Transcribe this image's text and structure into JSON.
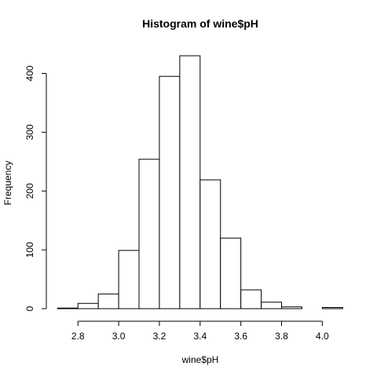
{
  "chart_data": {
    "type": "bar",
    "title": "Histogram of wine$pH",
    "xlabel": "wine$pH",
    "ylabel": "Frequency",
    "bins": [
      {
        "start": 2.7,
        "end": 2.8,
        "count": 1
      },
      {
        "start": 2.8,
        "end": 2.9,
        "count": 9
      },
      {
        "start": 2.9,
        "end": 3.0,
        "count": 25
      },
      {
        "start": 3.0,
        "end": 3.1,
        "count": 99
      },
      {
        "start": 3.1,
        "end": 3.2,
        "count": 254
      },
      {
        "start": 3.2,
        "end": 3.3,
        "count": 395
      },
      {
        "start": 3.3,
        "end": 3.4,
        "count": 430
      },
      {
        "start": 3.4,
        "end": 3.5,
        "count": 219
      },
      {
        "start": 3.5,
        "end": 3.6,
        "count": 120
      },
      {
        "start": 3.6,
        "end": 3.7,
        "count": 32
      },
      {
        "start": 3.7,
        "end": 3.8,
        "count": 11
      },
      {
        "start": 3.8,
        "end": 3.9,
        "count": 3
      },
      {
        "start": 3.9,
        "end": 4.0,
        "count": 0
      },
      {
        "start": 4.0,
        "end": 4.1,
        "count": 2
      }
    ],
    "x_ticks": [
      "2.8",
      "3.0",
      "3.2",
      "3.4",
      "3.6",
      "3.8",
      "4.0"
    ],
    "y_ticks": [
      "0",
      "100",
      "200",
      "300",
      "400"
    ],
    "xlim": [
      2.7,
      4.1
    ],
    "ylim": [
      0,
      430
    ],
    "grid": false,
    "legend": "none"
  }
}
